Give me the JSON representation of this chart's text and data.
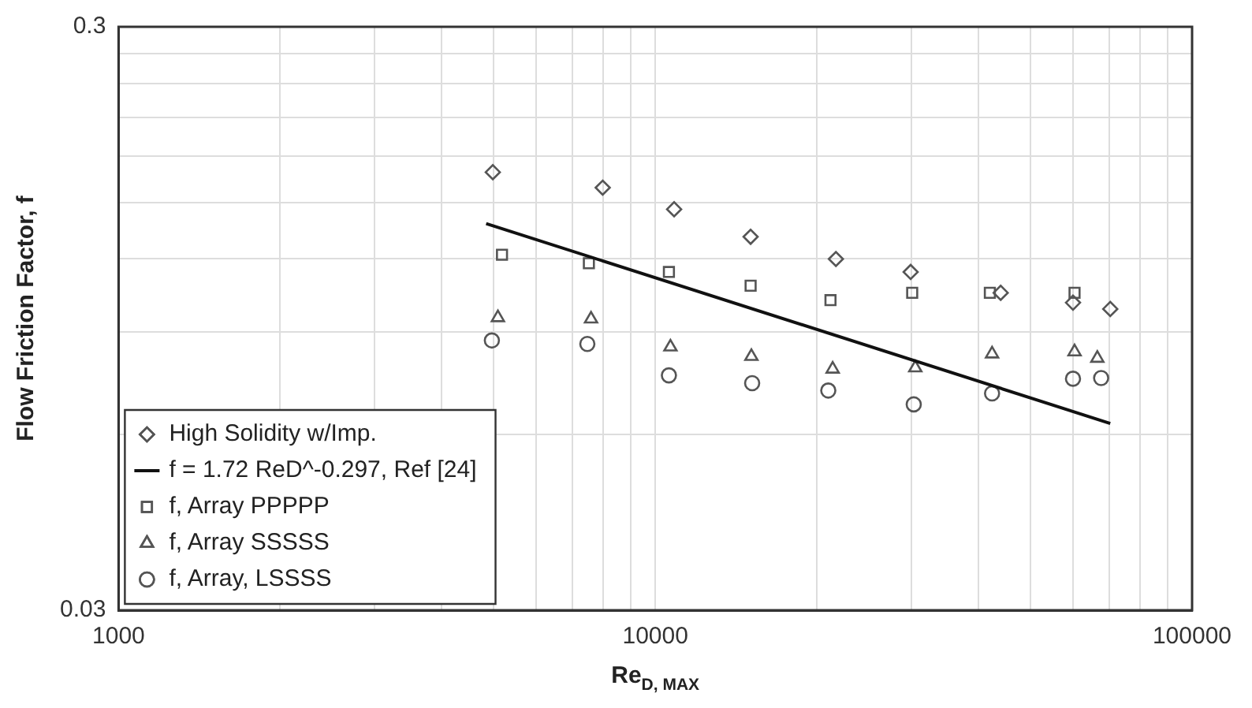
{
  "chart_data": {
    "type": "scatter",
    "xlabel": "Re$_{D, MAX}$",
    "ylabel": "Flow Friction Factor, f",
    "log": "xy",
    "grid": true,
    "legend": "bottom left",
    "xlim": [
      1000,
      100000
    ],
    "ylim": [
      0.03,
      0.3
    ],
    "xticks": [
      1000,
      {
        "value": 2000,
        "label": null
      },
      {
        "value": 3000,
        "label": null
      },
      {
        "value": 4000,
        "label": null
      },
      {
        "value": 5000,
        "label": null
      },
      {
        "value": 6000,
        "label": null
      },
      {
        "value": 7000,
        "label": null
      },
      {
        "value": 8000,
        "label": null
      },
      {
        "value": 9000,
        "label": null
      },
      10000,
      {
        "value": 20000,
        "label": null
      },
      {
        "value": 30000,
        "label": null
      },
      {
        "value": 40000,
        "label": null
      },
      {
        "value": 50000,
        "label": null
      },
      {
        "value": 60000,
        "label": null
      },
      {
        "value": 70000,
        "label": null
      },
      {
        "value": 80000,
        "label": null
      },
      {
        "value": 90000,
        "label": null
      },
      100000
    ],
    "yticks": [
      0.03,
      {
        "value": 0.06,
        "label": null
      },
      {
        "value": 0.09,
        "label": null
      },
      {
        "value": 0.12,
        "label": null
      },
      {
        "value": 0.15,
        "label": null
      },
      {
        "value": 0.18,
        "label": null
      },
      {
        "value": 0.21,
        "label": null
      },
      {
        "value": 0.24,
        "label": null
      },
      {
        "value": 0.27,
        "label": null
      },
      0.3
    ],
    "series": [
      {
        "name": "High Solidity w/Imp.",
        "marker": "diamond",
        "color": "#555555",
        "x": [
          4980,
          7980,
          10840,
          15050,
          21700,
          29900,
          44000,
          60000,
          70400
        ],
        "values": [
          0.169,
          0.159,
          0.146,
          0.131,
          0.12,
          0.114,
          0.105,
          0.101,
          0.0985
        ]
      },
      {
        "name": "f = 1.72 ReD^-0.297, Ref [24]",
        "type": "line",
        "marker": "none",
        "line_style": "solid",
        "color": "#111111",
        "x": [
          4840,
          70400
        ],
        "values": [
          0.138,
          0.0627
        ]
      },
      {
        "name": "f, Array PPPPP",
        "marker": "square",
        "color": "#555555",
        "x": [
          5180,
          7520,
          10600,
          15050,
          21200,
          30100,
          42000,
          60400
        ],
        "values": [
          0.122,
          0.118,
          0.114,
          0.108,
          0.102,
          0.105,
          0.105,
          0.105
        ]
      },
      {
        "name": "f, Array SSSSS",
        "marker": "triangle",
        "color": "#555555",
        "x": [
          5090,
          7590,
          10670,
          15100,
          21400,
          30500,
          42400,
          60400,
          66600
        ],
        "values": [
          0.0952,
          0.0947,
          0.0848,
          0.0817,
          0.0777,
          0.0781,
          0.0825,
          0.0832,
          0.0811
        ]
      },
      {
        "name": "f, Array, LSSSS",
        "marker": "circle",
        "color": "#555555",
        "x": [
          4960,
          7470,
          10600,
          15150,
          21000,
          30300,
          42400,
          60000,
          67700
        ],
        "values": [
          0.087,
          0.0858,
          0.0758,
          0.0735,
          0.0714,
          0.0676,
          0.0706,
          0.0748,
          0.075
        ]
      }
    ]
  }
}
